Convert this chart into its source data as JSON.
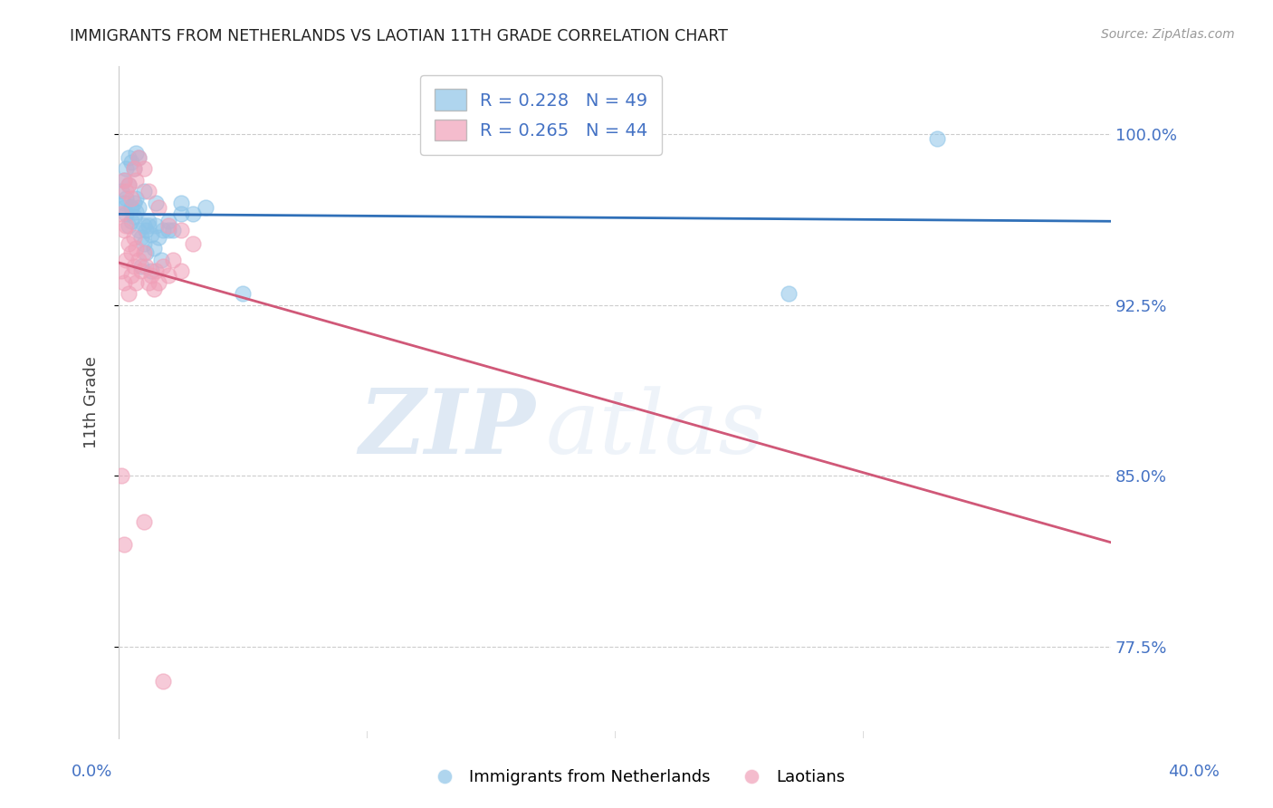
{
  "title": "IMMIGRANTS FROM NETHERLANDS VS LAOTIAN 11TH GRADE CORRELATION CHART",
  "source": "Source: ZipAtlas.com",
  "ylabel": "11th Grade",
  "ytick_labels": [
    "77.5%",
    "85.0%",
    "92.5%",
    "100.0%"
  ],
  "ytick_vals": [
    0.775,
    0.85,
    0.925,
    1.0
  ],
  "xlim": [
    0.0,
    0.4
  ],
  "ylim": [
    0.735,
    1.03
  ],
  "legend_blue_r": "R = 0.228",
  "legend_blue_n": "N = 49",
  "legend_pink_r": "R = 0.265",
  "legend_pink_n": "N = 44",
  "blue_color": "#8dc4e8",
  "pink_color": "#f0a0b8",
  "blue_line_color": "#3070b8",
  "pink_line_color": "#d05878",
  "title_color": "#222222",
  "axis_label_color": "#444444",
  "tick_color": "#4472c4",
  "grid_color": "#cccccc",
  "watermark_zip": "ZIP",
  "watermark_atlas": "atlas",
  "blue_x": [
    0.001,
    0.002,
    0.002,
    0.003,
    0.003,
    0.004,
    0.004,
    0.005,
    0.005,
    0.006,
    0.006,
    0.007,
    0.007,
    0.008,
    0.008,
    0.009,
    0.01,
    0.01,
    0.011,
    0.012,
    0.013,
    0.014,
    0.015,
    0.016,
    0.018,
    0.02,
    0.022,
    0.025,
    0.03,
    0.035,
    0.002,
    0.003,
    0.004,
    0.005,
    0.006,
    0.007,
    0.008,
    0.01,
    0.012,
    0.015,
    0.02,
    0.025,
    0.013,
    0.017,
    0.009,
    0.011,
    0.05,
    0.33,
    0.27
  ],
  "blue_y": [
    0.975,
    0.97,
    0.968,
    0.972,
    0.965,
    0.978,
    0.96,
    0.968,
    0.962,
    0.97,
    0.964,
    0.972,
    0.966,
    0.958,
    0.968,
    0.955,
    0.96,
    0.952,
    0.958,
    0.962,
    0.956,
    0.95,
    0.96,
    0.955,
    0.958,
    0.962,
    0.958,
    0.97,
    0.965,
    0.968,
    0.98,
    0.985,
    0.99,
    0.988,
    0.985,
    0.992,
    0.99,
    0.975,
    0.96,
    0.97,
    0.958,
    0.965,
    0.94,
    0.945,
    0.942,
    0.948,
    0.93,
    0.998,
    0.93
  ],
  "pink_x": [
    0.001,
    0.001,
    0.002,
    0.002,
    0.003,
    0.003,
    0.004,
    0.004,
    0.005,
    0.005,
    0.006,
    0.006,
    0.007,
    0.007,
    0.008,
    0.009,
    0.01,
    0.011,
    0.012,
    0.013,
    0.014,
    0.015,
    0.016,
    0.018,
    0.02,
    0.022,
    0.025,
    0.03,
    0.002,
    0.003,
    0.004,
    0.005,
    0.006,
    0.007,
    0.008,
    0.01,
    0.012,
    0.016,
    0.02,
    0.025,
    0.001,
    0.002,
    0.01,
    0.018
  ],
  "pink_y": [
    0.965,
    0.94,
    0.958,
    0.935,
    0.96,
    0.945,
    0.952,
    0.93,
    0.948,
    0.938,
    0.955,
    0.942,
    0.95,
    0.935,
    0.945,
    0.94,
    0.948,
    0.942,
    0.935,
    0.938,
    0.932,
    0.94,
    0.935,
    0.942,
    0.938,
    0.945,
    0.94,
    0.952,
    0.98,
    0.975,
    0.978,
    0.972,
    0.985,
    0.98,
    0.99,
    0.985,
    0.975,
    0.968,
    0.96,
    0.958,
    0.85,
    0.82,
    0.83,
    0.76
  ]
}
